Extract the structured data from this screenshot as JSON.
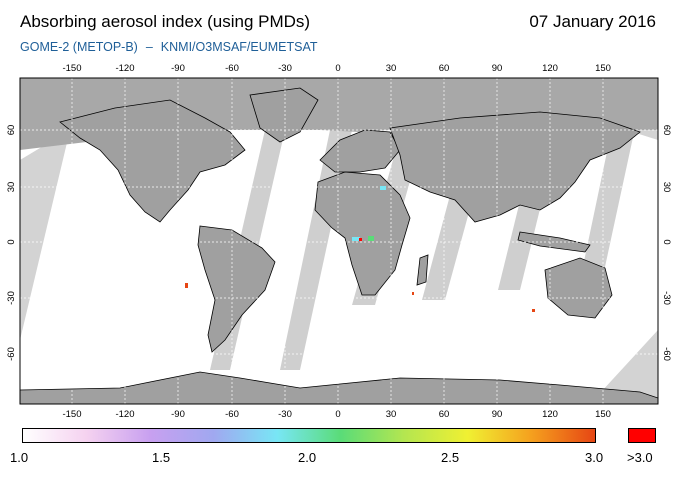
{
  "header": {
    "title": "Absorbing aerosol index (using PMDs)",
    "date": "07 January 2016",
    "instrument": "GOME-2 (METOP-B)",
    "separator": "–",
    "source": "KNMI/O3MSAF/EUMETSAT"
  },
  "map": {
    "lon_labels": [
      "-150",
      "-120",
      "-90",
      "-60",
      "-30",
      "0",
      "30",
      "60",
      "90",
      "120",
      "150"
    ],
    "lat_labels": [
      "60",
      "30",
      "0",
      "-30",
      "-60"
    ],
    "colors": {
      "land": "#a0a0a0",
      "swath_gap": "#d3d3d3",
      "ocean_covered": "#ffffff",
      "grid": "#ffffff"
    }
  },
  "legend": {
    "tick_labels": [
      "1.0",
      "1.5",
      "2.0",
      "2.5",
      "3.0"
    ],
    "over_label": ">3.0",
    "colors": [
      "#ffffff",
      "#f5d2f0",
      "#c8a0f0",
      "#a0a8f0",
      "#78e6f5",
      "#5adc78",
      "#b4e650",
      "#f0f032",
      "#f5a01e",
      "#e64614"
    ],
    "over_color": "#ff0000"
  }
}
